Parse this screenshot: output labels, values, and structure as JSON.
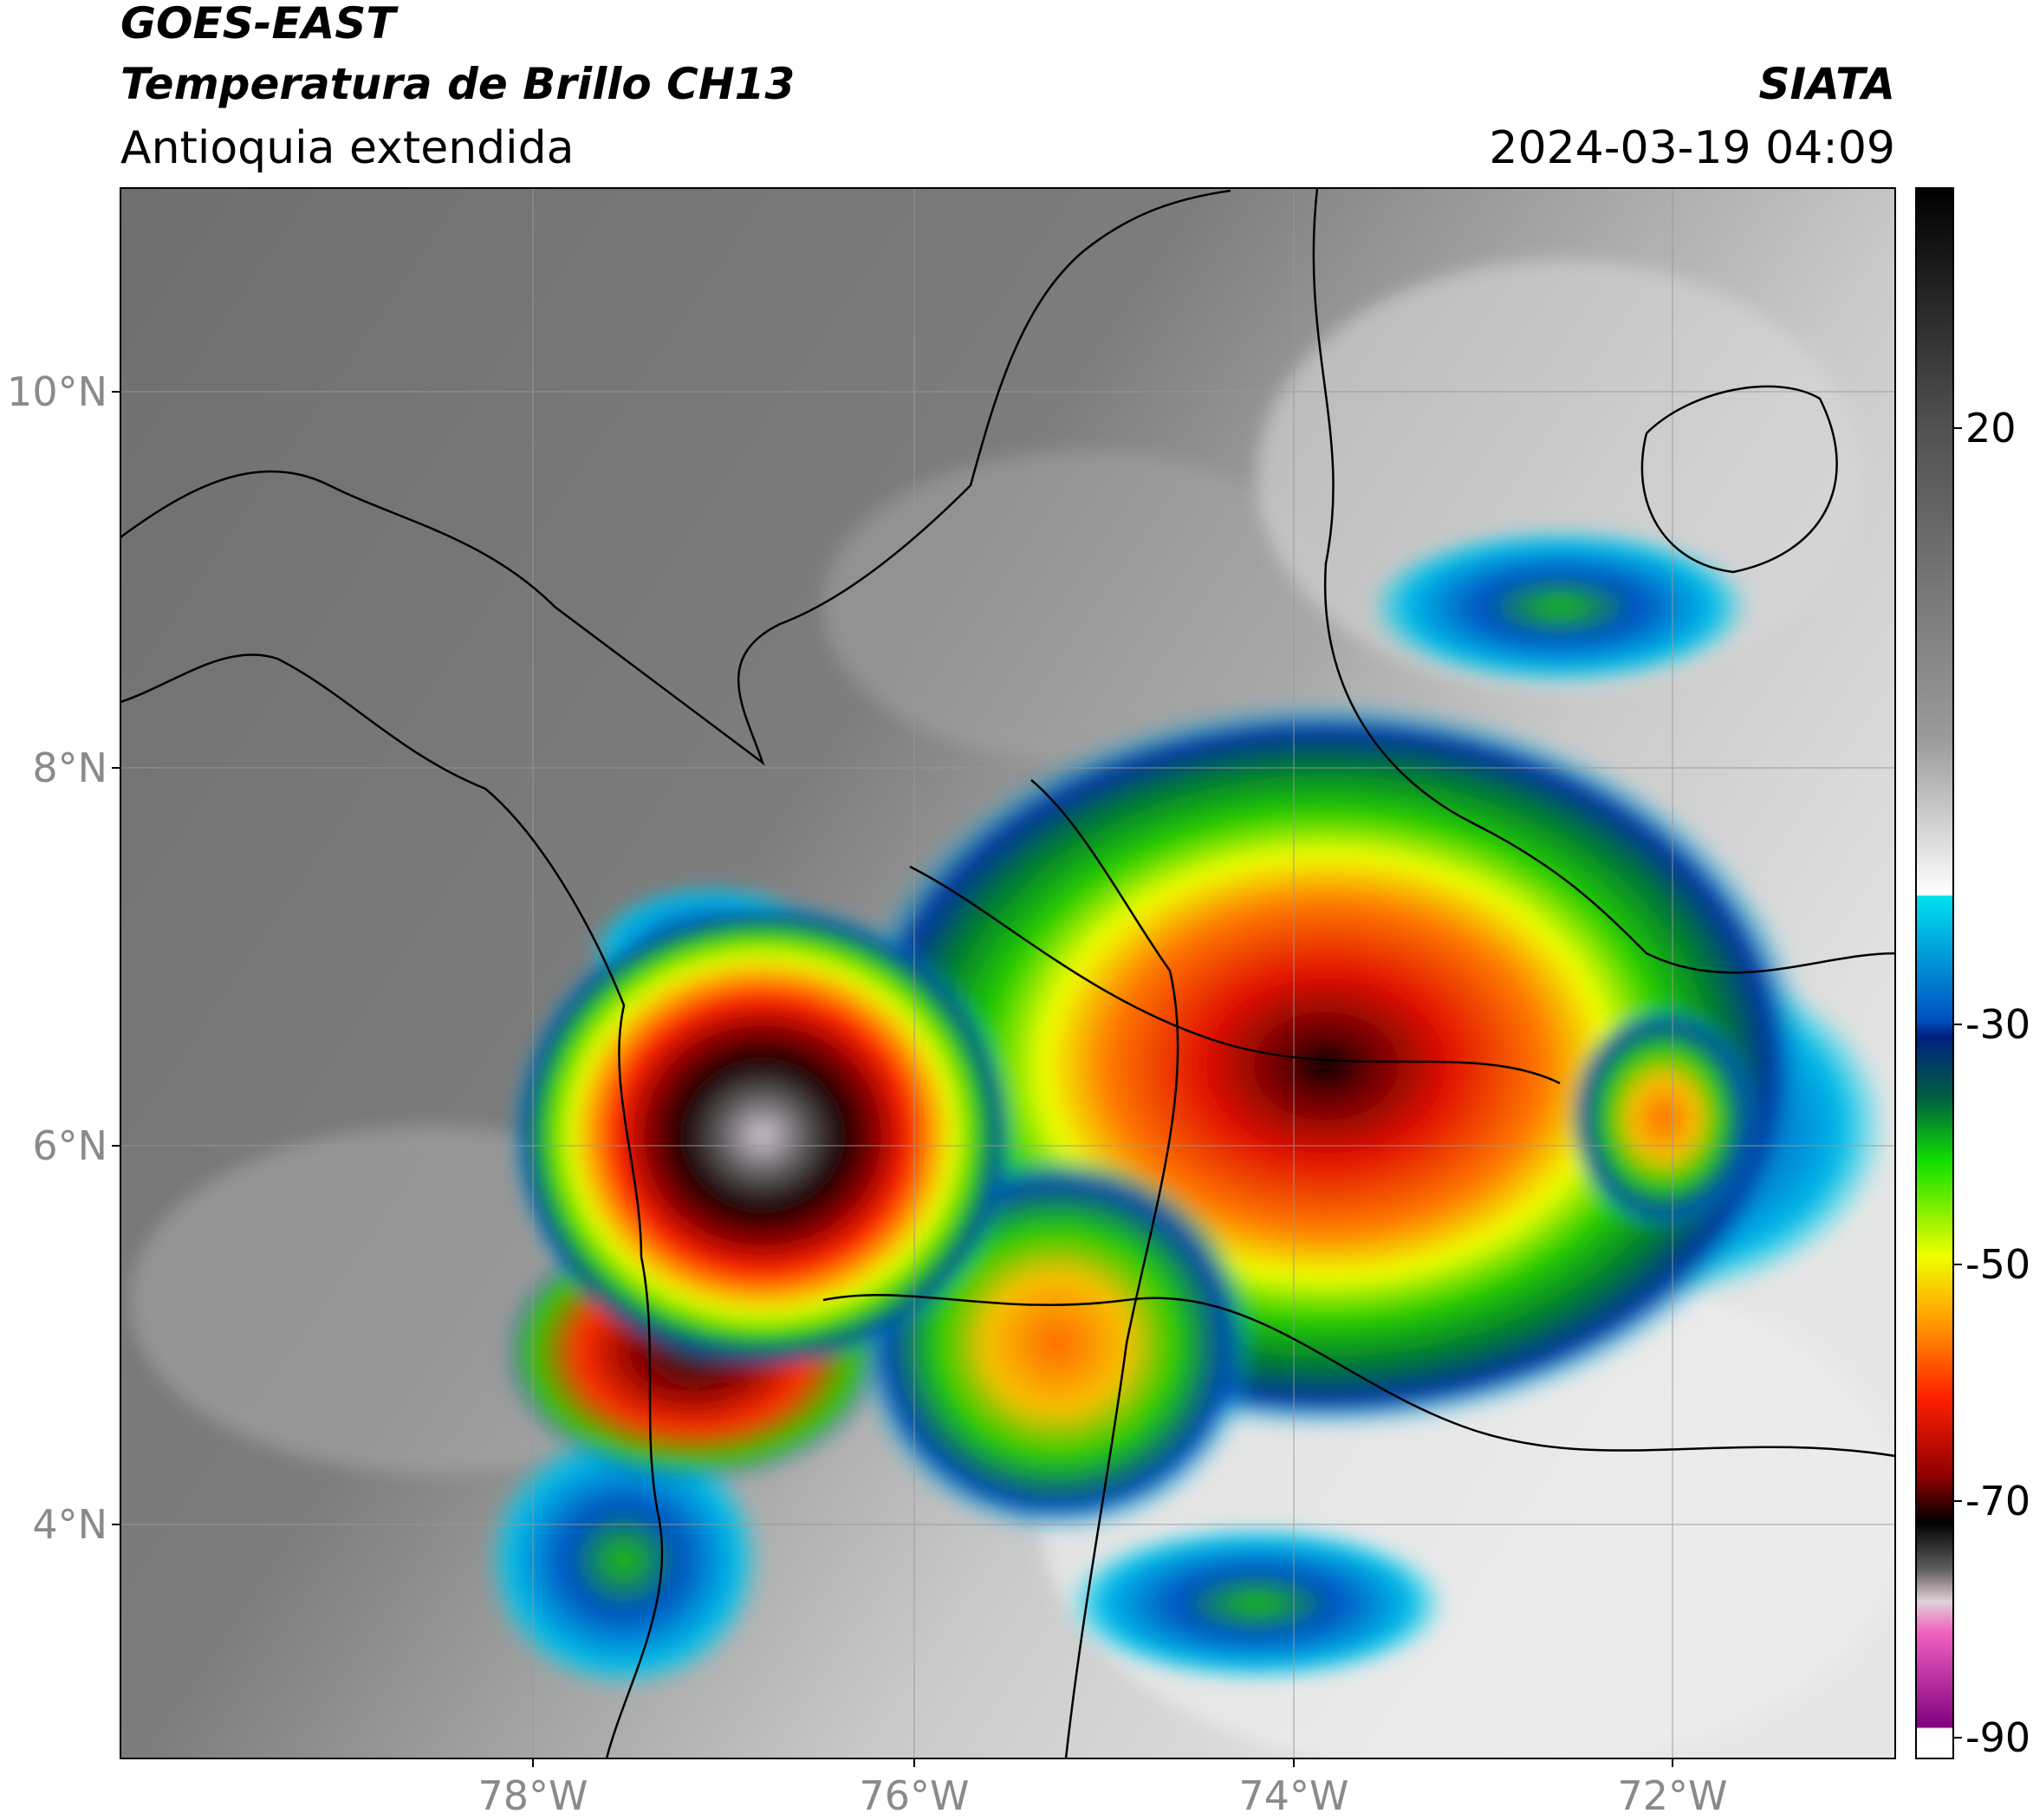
{
  "header": {
    "title": "GOES-EAST",
    "subtitle": "Temperatura de Brillo CH13",
    "region": "Antioquia extendida",
    "source": "SIATA",
    "timestamp": "2024-03-19 04:09"
  },
  "map": {
    "lat_labels": [
      "10°N",
      "8°N",
      "6°N",
      "4°N"
    ],
    "lon_labels": [
      "78°W",
      "76°W",
      "74°W",
      "72°W"
    ]
  },
  "colorbar": {
    "labels": [
      20,
      -30,
      -50,
      -70,
      -90
    ]
  }
}
